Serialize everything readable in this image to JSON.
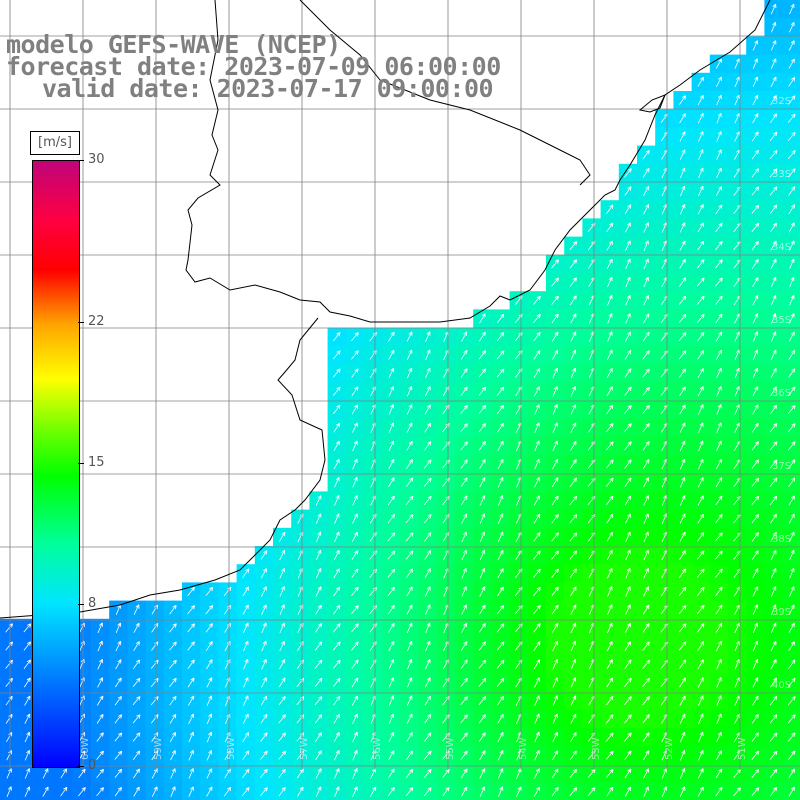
{
  "title_lines": {
    "model": "modelo GEFS-WAVE (NCEP)",
    "forecast": "forecast date: 2023-07-09 06:00:00",
    "valid": "valid date: 2023-07-17 09:00:00"
  },
  "colorbar": {
    "unit": "[m/s]",
    "min": 0,
    "max": 30,
    "ticks": [
      {
        "label": "30",
        "value": 30
      },
      {
        "label": "22",
        "value": 22
      },
      {
        "label": "15",
        "value": 15
      },
      {
        "label": "8",
        "value": 8
      },
      {
        "label": "0",
        "value": 0
      }
    ]
  },
  "map": {
    "lat_labels": [
      "32S",
      "33S",
      "34S",
      "35S",
      "36S",
      "37S",
      "38S",
      "39S",
      "40S"
    ],
    "lon_labels": [
      "60W",
      "59W",
      "58W",
      "57W",
      "56W",
      "55W",
      "54W",
      "53W",
      "52W",
      "51W"
    ],
    "wind_direction": "from southwest toward northeast",
    "colors": {
      "land": "#ffffff",
      "coast": "#000000",
      "grid": "#808080",
      "arrow": "#ffffff"
    }
  }
}
